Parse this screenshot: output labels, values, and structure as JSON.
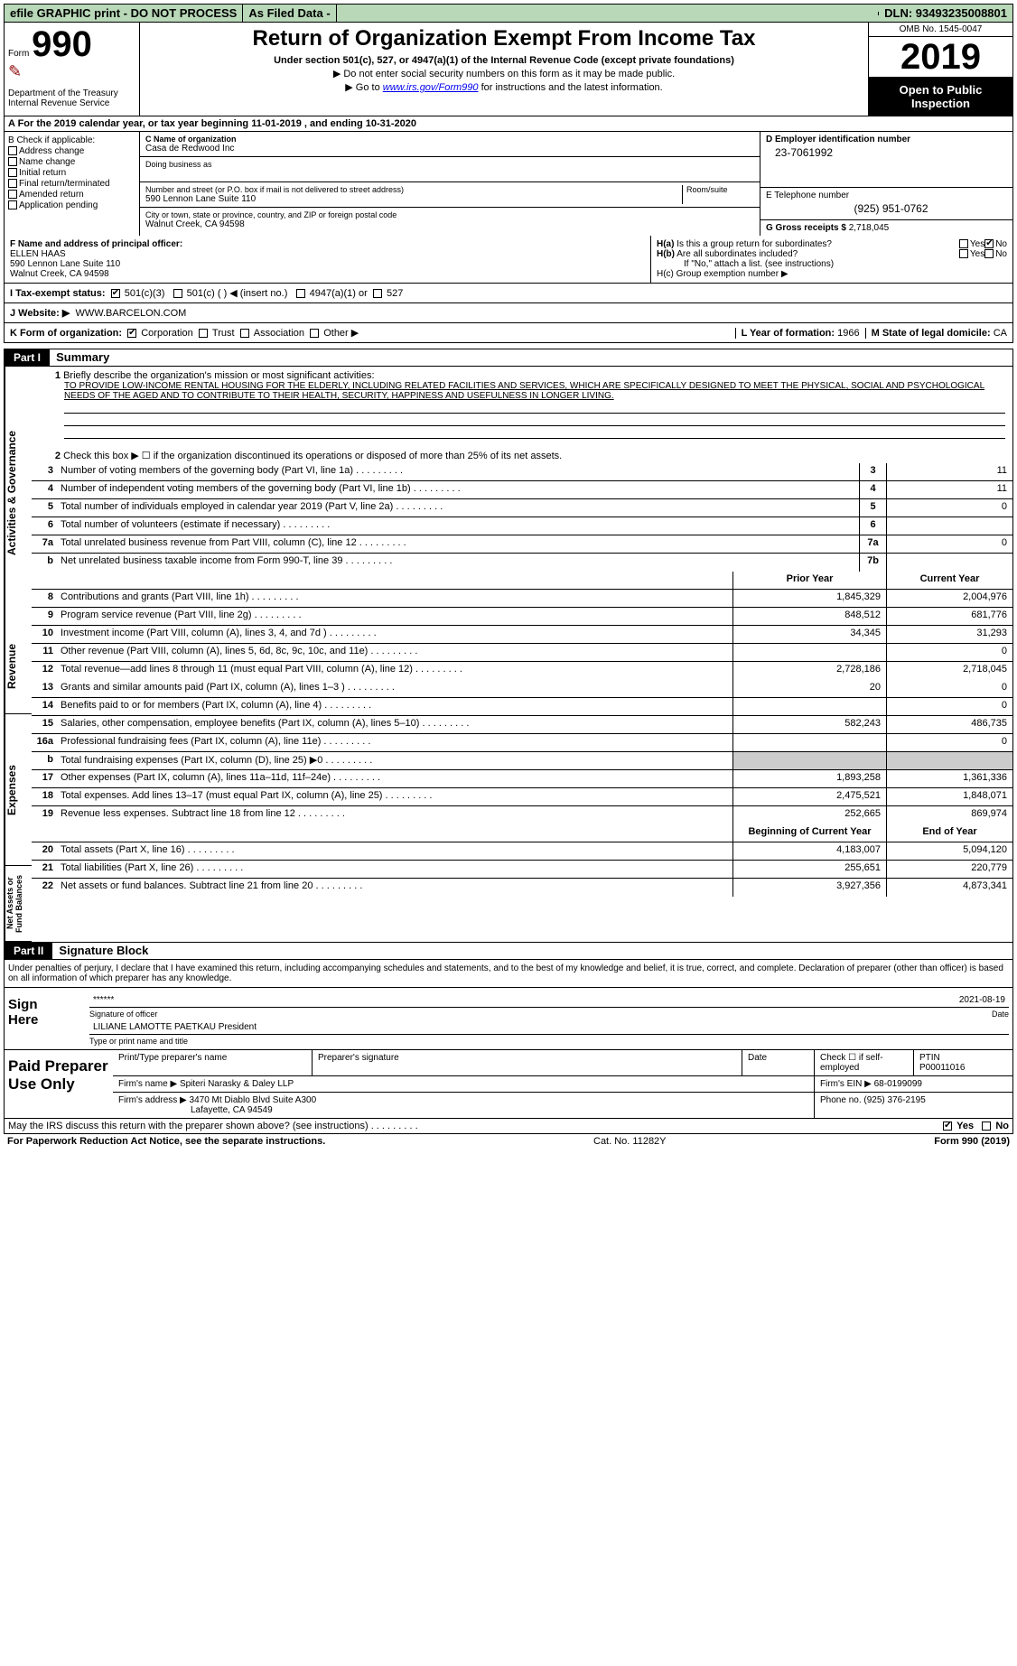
{
  "topbar": {
    "efile": "efile GRAPHIC print - DO NOT PROCESS",
    "asfiled": "As Filed Data -",
    "dln": "DLN: 93493235008801"
  },
  "header": {
    "form_label": "Form",
    "form_num": "990",
    "dept": "Department of the Treasury",
    "irs": "Internal Revenue Service",
    "title": "Return of Organization Exempt From Income Tax",
    "under": "Under section 501(c), 527, or 4947(a)(1) of the Internal Revenue Code (except private foundations)",
    "ssn": "▶ Do not enter social security numbers on this form as it may be made public.",
    "goto": "▶ Go to www.irs.gov/Form990 for instructions and the latest information.",
    "omb": "OMB No. 1545-0047",
    "year": "2019",
    "open": "Open to Public Inspection"
  },
  "row_a": "A  For the 2019 calendar year, or tax year beginning 11-01-2019   , and ending 10-31-2020",
  "col_b": {
    "title": "B Check if applicable:",
    "items": [
      "Address change",
      "Name change",
      "Initial return",
      "Final return/terminated",
      "Amended return",
      "Application pending"
    ]
  },
  "col_c": {
    "name_lbl": "C Name of organization",
    "name": "Casa de Redwood Inc",
    "dba_lbl": "Doing business as",
    "addr_lbl": "Number and street (or P.O. box if mail is not delivered to street address)",
    "addr": "590 Lennon Lane Suite 110",
    "room_lbl": "Room/suite",
    "city_lbl": "City or town, state or province, country, and ZIP or foreign postal code",
    "city": "Walnut Creek, CA  94598"
  },
  "col_d": {
    "ein_lbl": "D Employer identification number",
    "ein": "23-7061992",
    "tel_lbl": "E Telephone number",
    "tel": "(925) 951-0762",
    "gross_lbl": "G Gross receipts $",
    "gross": "2,718,045"
  },
  "row_f": {
    "lbl": "F  Name and address of principal officer:",
    "name": "ELLEN HAAS",
    "addr1": "590 Lennon Lane Suite 110",
    "addr2": "Walnut Creek, CA  94598"
  },
  "row_h": {
    "ha": "H(a) Is this a group return for subordinates?",
    "hb": "H(b) Are all subordinates included?",
    "hnote": "If \"No,\" attach a list. (see instructions)",
    "hc": "H(c) Group exemption number ▶"
  },
  "row_i": {
    "lbl": "I  Tax-exempt status:",
    "opts": [
      "501(c)(3)",
      "501(c) (  ) ◀ (insert no.)",
      "4947(a)(1) or",
      "527"
    ]
  },
  "row_j": {
    "lbl": "J  Website: ▶",
    "val": "WWW.BARCELON.COM"
  },
  "row_k": {
    "lbl": "K Form of organization:",
    "opts": [
      "Corporation",
      "Trust",
      "Association",
      "Other ▶"
    ],
    "l_lbl": "L Year of formation:",
    "l_val": "1966",
    "m_lbl": "M State of legal domicile:",
    "m_val": "CA"
  },
  "part1": {
    "hdr": "Part I",
    "title": "Summary",
    "q1_lbl": "1",
    "q1": "Briefly describe the organization's mission or most significant activities:",
    "mission": "TO PROVIDE LOW-INCOME RENTAL HOUSING FOR THE ELDERLY, INCLUDING RELATED FACILITIES AND SERVICES, WHICH ARE SPECIFICALLY DESIGNED TO MEET THE PHYSICAL, SOCIAL AND PSYCHOLOGICAL NEEDS OF THE AGED AND TO CONTRIBUTE TO THEIR HEALTH, SECURITY, HAPPINESS AND USEFULNESS IN LONGER LIVING.",
    "q2_lbl": "2",
    "q2": "Check this box ▶ ☐ if the organization discontinued its operations or disposed of more than 25% of its net assets.",
    "gov_lines": [
      {
        "n": "3",
        "d": "Number of voting members of the governing body (Part VI, line 1a)",
        "box": "3",
        "v": "11"
      },
      {
        "n": "4",
        "d": "Number of independent voting members of the governing body (Part VI, line 1b)",
        "box": "4",
        "v": "11"
      },
      {
        "n": "5",
        "d": "Total number of individuals employed in calendar year 2019 (Part V, line 2a)",
        "box": "5",
        "v": "0"
      },
      {
        "n": "6",
        "d": "Total number of volunteers (estimate if necessary)",
        "box": "6",
        "v": ""
      },
      {
        "n": "7a",
        "d": "Total unrelated business revenue from Part VIII, column (C), line 12",
        "box": "7a",
        "v": "0"
      },
      {
        "n": "b",
        "d": "Net unrelated business taxable income from Form 990-T, line 39",
        "box": "7b",
        "v": ""
      }
    ],
    "py_hdr": "Prior Year",
    "cy_hdr": "Current Year",
    "rev_lines": [
      {
        "n": "8",
        "d": "Contributions and grants (Part VIII, line 1h)",
        "py": "1,845,329",
        "cy": "2,004,976"
      },
      {
        "n": "9",
        "d": "Program service revenue (Part VIII, line 2g)",
        "py": "848,512",
        "cy": "681,776"
      },
      {
        "n": "10",
        "d": "Investment income (Part VIII, column (A), lines 3, 4, and 7d )",
        "py": "34,345",
        "cy": "31,293"
      },
      {
        "n": "11",
        "d": "Other revenue (Part VIII, column (A), lines 5, 6d, 8c, 9c, 10c, and 11e)",
        "py": "",
        "cy": "0"
      },
      {
        "n": "12",
        "d": "Total revenue—add lines 8 through 11 (must equal Part VIII, column (A), line 12)",
        "py": "2,728,186",
        "cy": "2,718,045"
      }
    ],
    "exp_lines": [
      {
        "n": "13",
        "d": "Grants and similar amounts paid (Part IX, column (A), lines 1–3 )",
        "py": "20",
        "cy": "0"
      },
      {
        "n": "14",
        "d": "Benefits paid to or for members (Part IX, column (A), line 4)",
        "py": "",
        "cy": "0"
      },
      {
        "n": "15",
        "d": "Salaries, other compensation, employee benefits (Part IX, column (A), lines 5–10)",
        "py": "582,243",
        "cy": "486,735"
      },
      {
        "n": "16a",
        "d": "Professional fundraising fees (Part IX, column (A), line 11e)",
        "py": "",
        "cy": "0"
      },
      {
        "n": "b",
        "d": "Total fundraising expenses (Part IX, column (D), line 25) ▶0",
        "py": "GRAY",
        "cy": "GRAY"
      },
      {
        "n": "17",
        "d": "Other expenses (Part IX, column (A), lines 11a–11d, 11f–24e)",
        "py": "1,893,258",
        "cy": "1,361,336"
      },
      {
        "n": "18",
        "d": "Total expenses. Add lines 13–17 (must equal Part IX, column (A), line 25)",
        "py": "2,475,521",
        "cy": "1,848,071"
      },
      {
        "n": "19",
        "d": "Revenue less expenses. Subtract line 18 from line 12",
        "py": "252,665",
        "cy": "869,974"
      }
    ],
    "bcy_hdr": "Beginning of Current Year",
    "eoy_hdr": "End of Year",
    "na_lines": [
      {
        "n": "20",
        "d": "Total assets (Part X, line 16)",
        "py": "4,183,007",
        "cy": "5,094,120"
      },
      {
        "n": "21",
        "d": "Total liabilities (Part X, line 26)",
        "py": "255,651",
        "cy": "220,779"
      },
      {
        "n": "22",
        "d": "Net assets or fund balances. Subtract line 21 from line 20",
        "py": "3,927,356",
        "cy": "4,873,341"
      }
    ],
    "vside_gov": "Activities & Governance",
    "vside_rev": "Revenue",
    "vside_exp": "Expenses",
    "vside_na": "Net Assets or Fund Balances"
  },
  "part2": {
    "hdr": "Part II",
    "title": "Signature Block",
    "decl": "Under penalties of perjury, I declare that I have examined this return, including accompanying schedules and statements, and to the best of my knowledge and belief, it is true, correct, and complete. Declaration of preparer (other than officer) is based on all information of which preparer has any knowledge.",
    "sign_here": "Sign Here",
    "stars": "******",
    "sig_of_officer": "Signature of officer",
    "date": "2021-08-19",
    "date_lbl": "Date",
    "officer": "LILIANE LAMOTTE PAETKAU President",
    "type_name": "Type or print name and title",
    "paid_prep": "Paid Preparer Use Only",
    "pt_name_lbl": "Print/Type preparer's name",
    "prep_sig_lbl": "Preparer's signature",
    "check_if": "Check ☐ if self-employed",
    "ptin_lbl": "PTIN",
    "ptin": "P00011016",
    "firm_name_lbl": "Firm's name   ▶",
    "firm_name": "Spiteri Narasky & Daley LLP",
    "firm_ein_lbl": "Firm's EIN ▶",
    "firm_ein": "68-0199099",
    "firm_addr_lbl": "Firm's address ▶",
    "firm_addr": "3470 Mt Diablo Blvd Suite A300",
    "firm_city": "Lafayette, CA  94549",
    "phone_lbl": "Phone no.",
    "phone": "(925) 376-2195"
  },
  "footer": {
    "discuss": "May the IRS discuss this return with the preparer shown above? (see instructions)",
    "yes": "Yes",
    "no": "No",
    "paperwork": "For Paperwork Reduction Act Notice, see the separate instructions.",
    "cat": "Cat. No. 11282Y",
    "form": "Form 990 (2019)"
  }
}
